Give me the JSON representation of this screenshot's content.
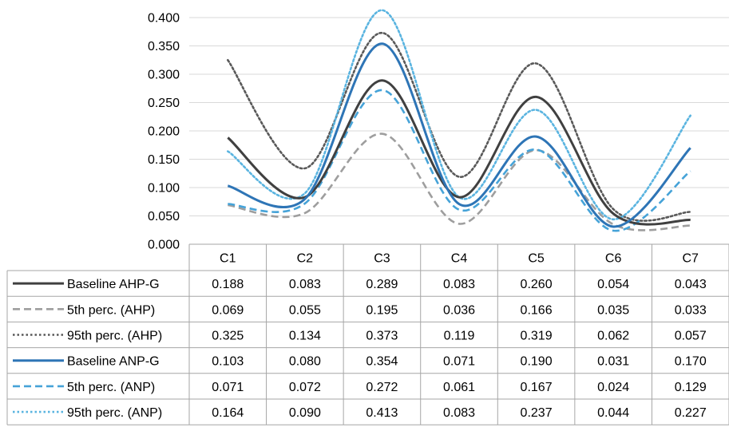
{
  "chart_data": {
    "type": "line",
    "categories": [
      "C1",
      "C2",
      "C3",
      "C4",
      "C5",
      "C6",
      "C7"
    ],
    "ylim": [
      0,
      0.4
    ],
    "yticks": [
      "0.000",
      "0.050",
      "0.100",
      "0.150",
      "0.200",
      "0.250",
      "0.300",
      "0.350",
      "0.400"
    ],
    "grid": true,
    "legend": "data-table",
    "series": [
      {
        "name": "Baseline AHP-G",
        "color": "#404040",
        "dash": "solid",
        "values": [
          0.188,
          0.083,
          0.289,
          0.083,
          0.26,
          0.054,
          0.043
        ],
        "labels": [
          "0.188",
          "0.083",
          "0.289",
          "0.083",
          "0.260",
          "0.054",
          "0.043"
        ]
      },
      {
        "name": "5th perc. (AHP)",
        "color": "#9e9e9e",
        "dash": "dashed",
        "values": [
          0.069,
          0.055,
          0.195,
          0.036,
          0.166,
          0.035,
          0.033
        ],
        "labels": [
          "0.069",
          "0.055",
          "0.195",
          "0.036",
          "0.166",
          "0.035",
          "0.033"
        ]
      },
      {
        "name": "95th perc. (AHP)",
        "color": "#595959",
        "dash": "dotted",
        "values": [
          0.325,
          0.134,
          0.373,
          0.119,
          0.319,
          0.062,
          0.057
        ],
        "labels": [
          "0.325",
          "0.134",
          "0.373",
          "0.119",
          "0.319",
          "0.062",
          "0.057"
        ]
      },
      {
        "name": "Baseline ANP-G",
        "color": "#2e75b6",
        "dash": "solid",
        "values": [
          0.103,
          0.08,
          0.354,
          0.071,
          0.19,
          0.031,
          0.17
        ],
        "labels": [
          "0.103",
          "0.080",
          "0.354",
          "0.071",
          "0.190",
          "0.031",
          "0.170"
        ]
      },
      {
        "name": "5th perc. (ANP)",
        "color": "#46a3d8",
        "dash": "dashed",
        "values": [
          0.071,
          0.072,
          0.272,
          0.061,
          0.167,
          0.024,
          0.129
        ],
        "labels": [
          "0.071",
          "0.072",
          "0.272",
          "0.061",
          "0.167",
          "0.024",
          "0.129"
        ]
      },
      {
        "name": "95th perc. (ANP)",
        "color": "#5ab4e0",
        "dash": "dotted",
        "values": [
          0.164,
          0.09,
          0.413,
          0.083,
          0.237,
          0.044,
          0.227
        ],
        "labels": [
          "0.164",
          "0.090",
          "0.413",
          "0.083",
          "0.237",
          "0.044",
          "0.227"
        ]
      }
    ],
    "colors": {
      "grid": "#d9d9d9",
      "table_border": "#a6a6a6"
    }
  }
}
